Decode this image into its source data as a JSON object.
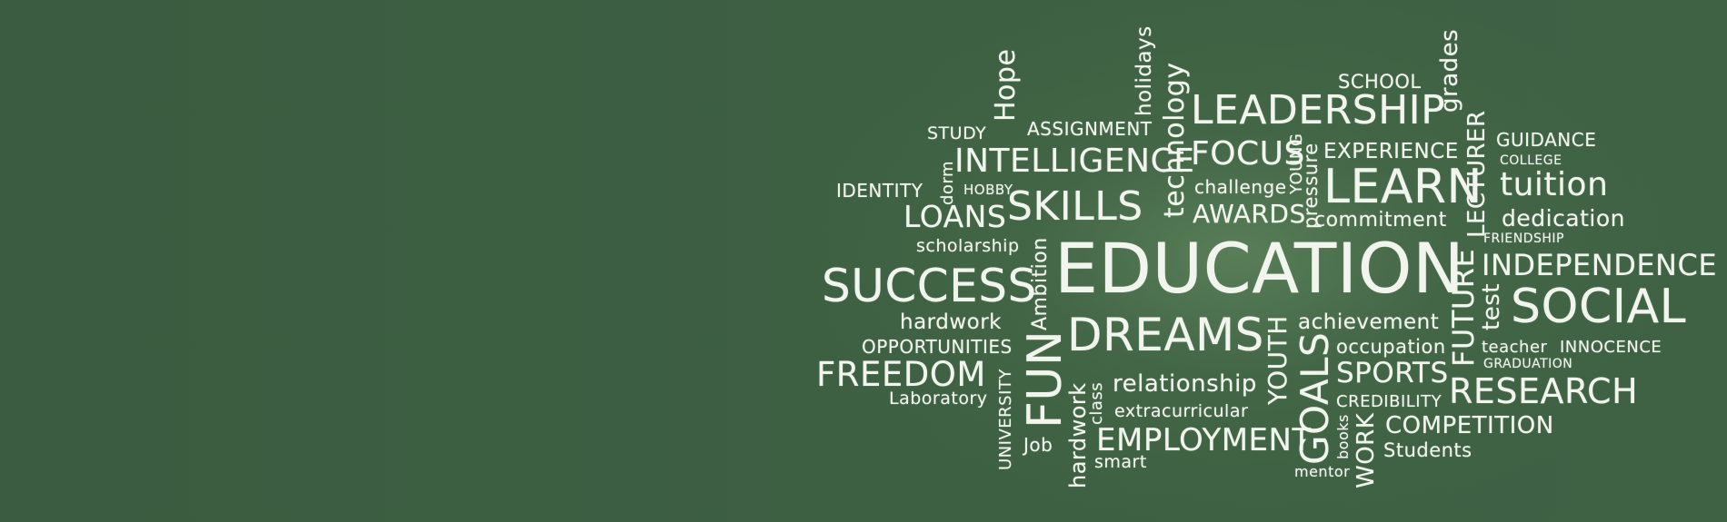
{
  "words": {
    "school": "SCHOOL",
    "grades": "grades",
    "holidays": "holidays",
    "technology": "technology",
    "hope": "Hope",
    "study": "STUDY",
    "assignment": "ASSIGNMENT",
    "leadership": "LEADERSHIP",
    "lecturer": "LECTURER",
    "guidance": "GUIDANCE",
    "college": "COLLEGE",
    "intelligence": "INTELLIGENCE",
    "focus": "FOCUS",
    "young": "YOUNG",
    "experience": "EXPERIENCE",
    "dorm": "dorm",
    "identity": "IDENTITY",
    "hobby": "HOBBY",
    "challenge": "challenge",
    "pressure": "pressure",
    "learn": "LEARN",
    "tuition": "tuition",
    "loans": "LOANS",
    "skills": "SKILLS",
    "awards": "AWARDS",
    "commitment": "commitment",
    "dedication": "dedication",
    "scholarship": "scholarship",
    "friendship": "FRIENDSHIP",
    "success": "SUCCESS",
    "ambition": "Ambition",
    "education": "EDUCATION",
    "future": "FUTURE",
    "independence": "INDEPENDENCE",
    "test": "test",
    "social": "SOCIAL",
    "hardwork": "hardwork",
    "dreams": "DREAMS",
    "achievement": "achievement",
    "opportunities": "OPPORTUNITIES",
    "youth": "YOUTH",
    "goals": "GOALS",
    "occupation": "occupation",
    "teacher": "teacher",
    "innocence": "INNOCENCE",
    "freedom": "FREEDOM",
    "fun": "FUN",
    "graduation": "GRADUATION",
    "sports": "SPORTS",
    "relationship": "relationship",
    "research": "RESEARCH",
    "laboratory": "Laboratory",
    "university": "UNIVERSITY",
    "hardwork_vertical": "hardwork",
    "class": "class",
    "credibility": "CREDIBILITY",
    "extracurricular": "extracurricular",
    "competition": "COMPETITION",
    "books": "books",
    "work": "WORK",
    "employment": "EMPLOYMENT",
    "job": "Job",
    "students": "Students",
    "smart": "smart",
    "mentor": "mentor"
  }
}
